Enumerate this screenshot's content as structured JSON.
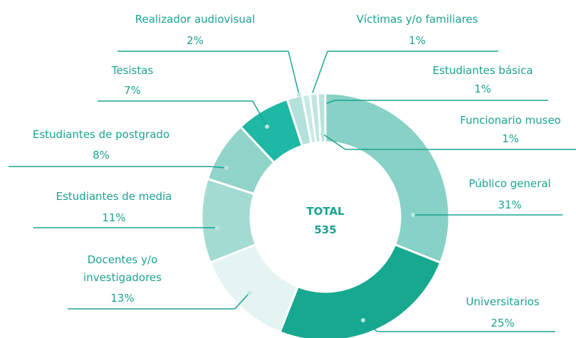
{
  "chart_data": {
    "type": "donut",
    "categories": [
      "Público general",
      "Universitarios",
      "Docentes y/o investigadores",
      "Estudiantes de media",
      "Estudiantes de postgrado",
      "Tesistas",
      "Realizador audiovisual",
      "Víctimas y/o familiares",
      "Estudiantes básica",
      "Funcionario museo"
    ],
    "values": [
      31,
      25,
      13,
      11,
      8,
      7,
      2,
      1,
      1,
      1
    ],
    "value_labels": [
      "31%",
      "25%",
      "13%",
      "11%",
      "8%",
      "7%",
      "2%",
      "1%",
      "1%",
      "1%"
    ],
    "colors": [
      "#87d1c6",
      "#17a890",
      "#e4f4f1",
      "#a3dbd3",
      "#90d3c9",
      "#1fb8a4",
      "#b4e1da",
      "#c7e9e4",
      "#bfe6e0",
      "#b9e3dd"
    ],
    "center_label": "TOTAL",
    "total": 535
  }
}
